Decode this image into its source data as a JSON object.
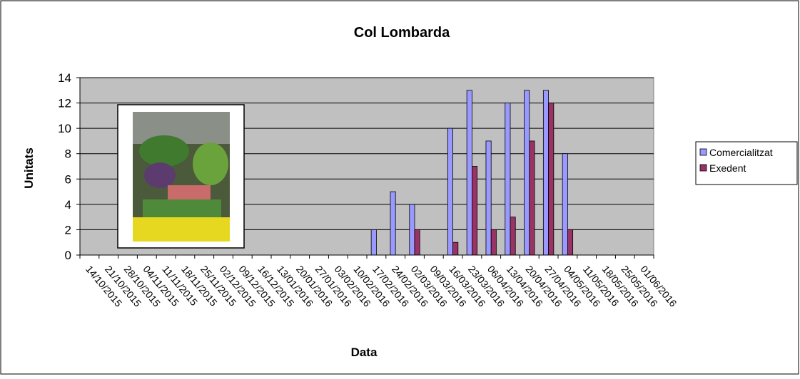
{
  "chart_data": {
    "type": "bar",
    "title": "Col Lombarda",
    "x_label": "Data",
    "y_label": "Unitats",
    "categories": [
      "14/10/2015",
      "21/10/2015",
      "28/10/2015",
      "04/11/2015",
      "11/11/2015",
      "18/11/2015",
      "25/11/2015",
      "02/12/2015",
      "09/12/2015",
      "16/12/2015",
      "13/01/2016",
      "20/01/2016",
      "27/01/2016",
      "03/02/2016",
      "10/02/2016",
      "17/02/2016",
      "24/02/2016",
      "02/03/2016",
      "09/03/2016",
      "16/03/2016",
      "23/03/2016",
      "06/04/2016",
      "13/04/2016",
      "20/04/2016",
      "27/04/2016",
      "04/05/2016",
      "11/05/2016",
      "18/05/2016",
      "25/05/2016",
      "01/06/2016"
    ],
    "series": [
      {
        "name": "Comercialitzat",
        "color": "#9999ff",
        "values": [
          null,
          null,
          null,
          null,
          null,
          null,
          null,
          null,
          null,
          null,
          null,
          null,
          null,
          null,
          null,
          2,
          5,
          4,
          null,
          10,
          13,
          9,
          12,
          13,
          13,
          8,
          null,
          null,
          null,
          null
        ]
      },
      {
        "name": "Exedent",
        "color": "#993366",
        "values": [
          null,
          null,
          null,
          null,
          null,
          null,
          null,
          null,
          null,
          null,
          null,
          null,
          null,
          null,
          null,
          null,
          null,
          2,
          null,
          1,
          7,
          2,
          3,
          9,
          12,
          2,
          null,
          null,
          null,
          null
        ]
      }
    ],
    "ylim": [
      0,
      14
    ],
    "yticks": [
      0,
      2,
      4,
      6,
      8,
      10,
      12,
      14
    ],
    "grid": true,
    "legend": "right",
    "plot_background": "#c0c0c0"
  }
}
